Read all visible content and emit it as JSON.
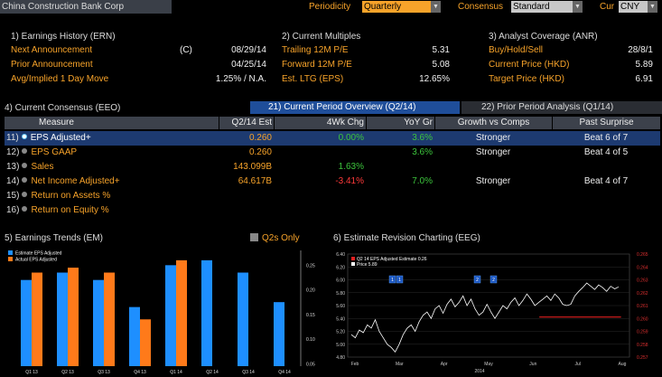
{
  "topbar": {
    "company": "China Construction Bank Corp",
    "periodicity_label": "Periodicity",
    "periodicity_value": "Quarterly",
    "consensus_label": "Consensus",
    "consensus_value": "Standard",
    "cur_label": "Cur",
    "cur_value": "CNY"
  },
  "earnings_history": {
    "title": "1) Earnings History (ERN)",
    "rows": [
      {
        "label": "Next Announcement",
        "flag": "(C)",
        "value": "08/29/14"
      },
      {
        "label": "Prior Announcement",
        "flag": "",
        "value": "04/25/14"
      },
      {
        "label": "Avg/Implied 1 Day Move",
        "flag": "",
        "value": "1.25% / N.A."
      }
    ]
  },
  "current_multiples": {
    "title": "2) Current Multiples",
    "rows": [
      {
        "label": "Trailing 12M P/E",
        "value": "5.31"
      },
      {
        "label": "Forward 12M P/E",
        "value": "5.08"
      },
      {
        "label": "Est. LTG (EPS)",
        "value": "12.65%"
      }
    ]
  },
  "analyst_coverage": {
    "title": "3) Analyst Coverage (ANR)",
    "rows": [
      {
        "label": "Buy/Hold/Sell",
        "value": "28/8/1"
      },
      {
        "label": "Current Price (HKD)",
        "value": "5.89"
      },
      {
        "label": "Target Price (HKD)",
        "value": "6.91"
      }
    ]
  },
  "consensus": {
    "title": "4) Current Consensus (EEO)",
    "tab_active": "21) Current Period Overview (Q2/14)",
    "tab_other": "22) Prior Period Analysis (Q1/14)",
    "headers": [
      "Measure",
      "Q2/14 Est",
      "4Wk Chg",
      "YoY Gr",
      "Growth vs Comps",
      "Past Surprise"
    ],
    "rows": [
      {
        "num": "11)",
        "measure": "EPS Adjusted+",
        "est": "0.260",
        "chg": "0.00%",
        "chg_color": "#3cc43c",
        "yoy": "3.6%",
        "growth": "Stronger",
        "surprise": "Beat 6 of 7"
      },
      {
        "num": "12)",
        "measure": "EPS GAAP",
        "est": "0.260",
        "chg": "",
        "chg_color": "#3cc43c",
        "yoy": "3.6%",
        "growth": "Stronger",
        "surprise": "Beat 4 of 5"
      },
      {
        "num": "13)",
        "measure": "Sales",
        "est": "143.099B",
        "chg": "1.63%",
        "chg_color": "#3cc43c",
        "yoy": "",
        "growth": "",
        "surprise": ""
      },
      {
        "num": "14)",
        "measure": "Net Income Adjusted+",
        "est": "64.617B",
        "chg": "-3.41%",
        "chg_color": "#ff3a3a",
        "yoy": "7.0%",
        "growth": "Stronger",
        "surprise": "Beat 4 of 7"
      },
      {
        "num": "15)",
        "measure": "Return on Assets %",
        "est": "",
        "chg": "",
        "chg_color": "#3cc43c",
        "yoy": "",
        "growth": "",
        "surprise": ""
      },
      {
        "num": "16)",
        "measure": "Return on Equity %",
        "est": "",
        "chg": "",
        "chg_color": "#3cc43c",
        "yoy": "",
        "growth": "",
        "surprise": ""
      }
    ]
  },
  "trends": {
    "title": "5) Earnings Trends (EM)",
    "q2s_only": "Q2s Only",
    "chart_data": {
      "type": "bar",
      "categories": [
        "Q1 13",
        "Q2 13",
        "Q3 13",
        "Q4 13",
        "Q1 14",
        "Q2 14",
        "Q3 14",
        "Q4 14"
      ],
      "series": [
        {
          "name": "Estimate EPS Adjusted",
          "color": "#1e8fff",
          "values": [
            0.22,
            0.235,
            0.22,
            0.165,
            0.25,
            0.26,
            0.235,
            0.175
          ]
        },
        {
          "name": "Actual EPS Adjusted",
          "color": "#ff7a1a",
          "values": [
            0.235,
            0.245,
            0.235,
            0.14,
            0.26,
            null,
            null,
            null
          ]
        }
      ],
      "ylim": [
        0.045,
        0.28
      ],
      "yticks": [
        "0.25",
        "0.20",
        "0.15",
        "0.10",
        "0.05"
      ],
      "ytick_values": [
        0.25,
        0.2,
        0.15,
        0.1,
        0.05
      ]
    }
  },
  "revision": {
    "title": "6) Estimate Revision Charting (EEG)",
    "chart_data": {
      "type": "line",
      "legend": [
        "Q2 14 EPS Adjusted Estimate 0.26",
        "Price 5.89"
      ],
      "x_labels": [
        "Feb",
        "Mar",
        "Apr",
        "May",
        "Jun",
        "Jul",
        "Aug"
      ],
      "x_sublabel": "2014",
      "yticks_left": [
        "6.40",
        "6.20",
        "6.00",
        "5.80",
        "5.60",
        "5.40",
        "5.20",
        "5.00",
        "4.80"
      ],
      "yticks_right": [
        "0.265",
        "0.264",
        "0.263",
        "0.262",
        "0.261",
        "0.260",
        "0.259",
        "0.258",
        "0.257"
      ],
      "ylim": [
        4.8,
        6.4
      ],
      "price": [
        5.15,
        5.1,
        5.22,
        5.18,
        5.3,
        5.25,
        5.38,
        5.2,
        5.1,
        5.0,
        4.95,
        4.88,
        5.0,
        5.15,
        5.25,
        5.3,
        5.2,
        5.35,
        5.45,
        5.5,
        5.4,
        5.55,
        5.6,
        5.48,
        5.62,
        5.7,
        5.58,
        5.65,
        5.75,
        5.6,
        5.7,
        5.55,
        5.45,
        5.5,
        5.62,
        5.5,
        5.4,
        5.5,
        5.6,
        5.55,
        5.65,
        5.72,
        5.6,
        5.68,
        5.78,
        5.7,
        5.6,
        5.65,
        5.7,
        5.75,
        5.68,
        5.78,
        5.72,
        5.62,
        5.6,
        5.62,
        5.75,
        5.82,
        5.88,
        5.95,
        5.9,
        5.85,
        5.92,
        5.88,
        5.82,
        5.9,
        5.86,
        5.89
      ],
      "estimate_value": 0.26,
      "estimate_range": [
        0.2565,
        0.2655
      ],
      "estimate_segment": [
        0.68,
        0.97
      ],
      "markers": [
        "1",
        "1",
        "2",
        "2"
      ]
    }
  }
}
